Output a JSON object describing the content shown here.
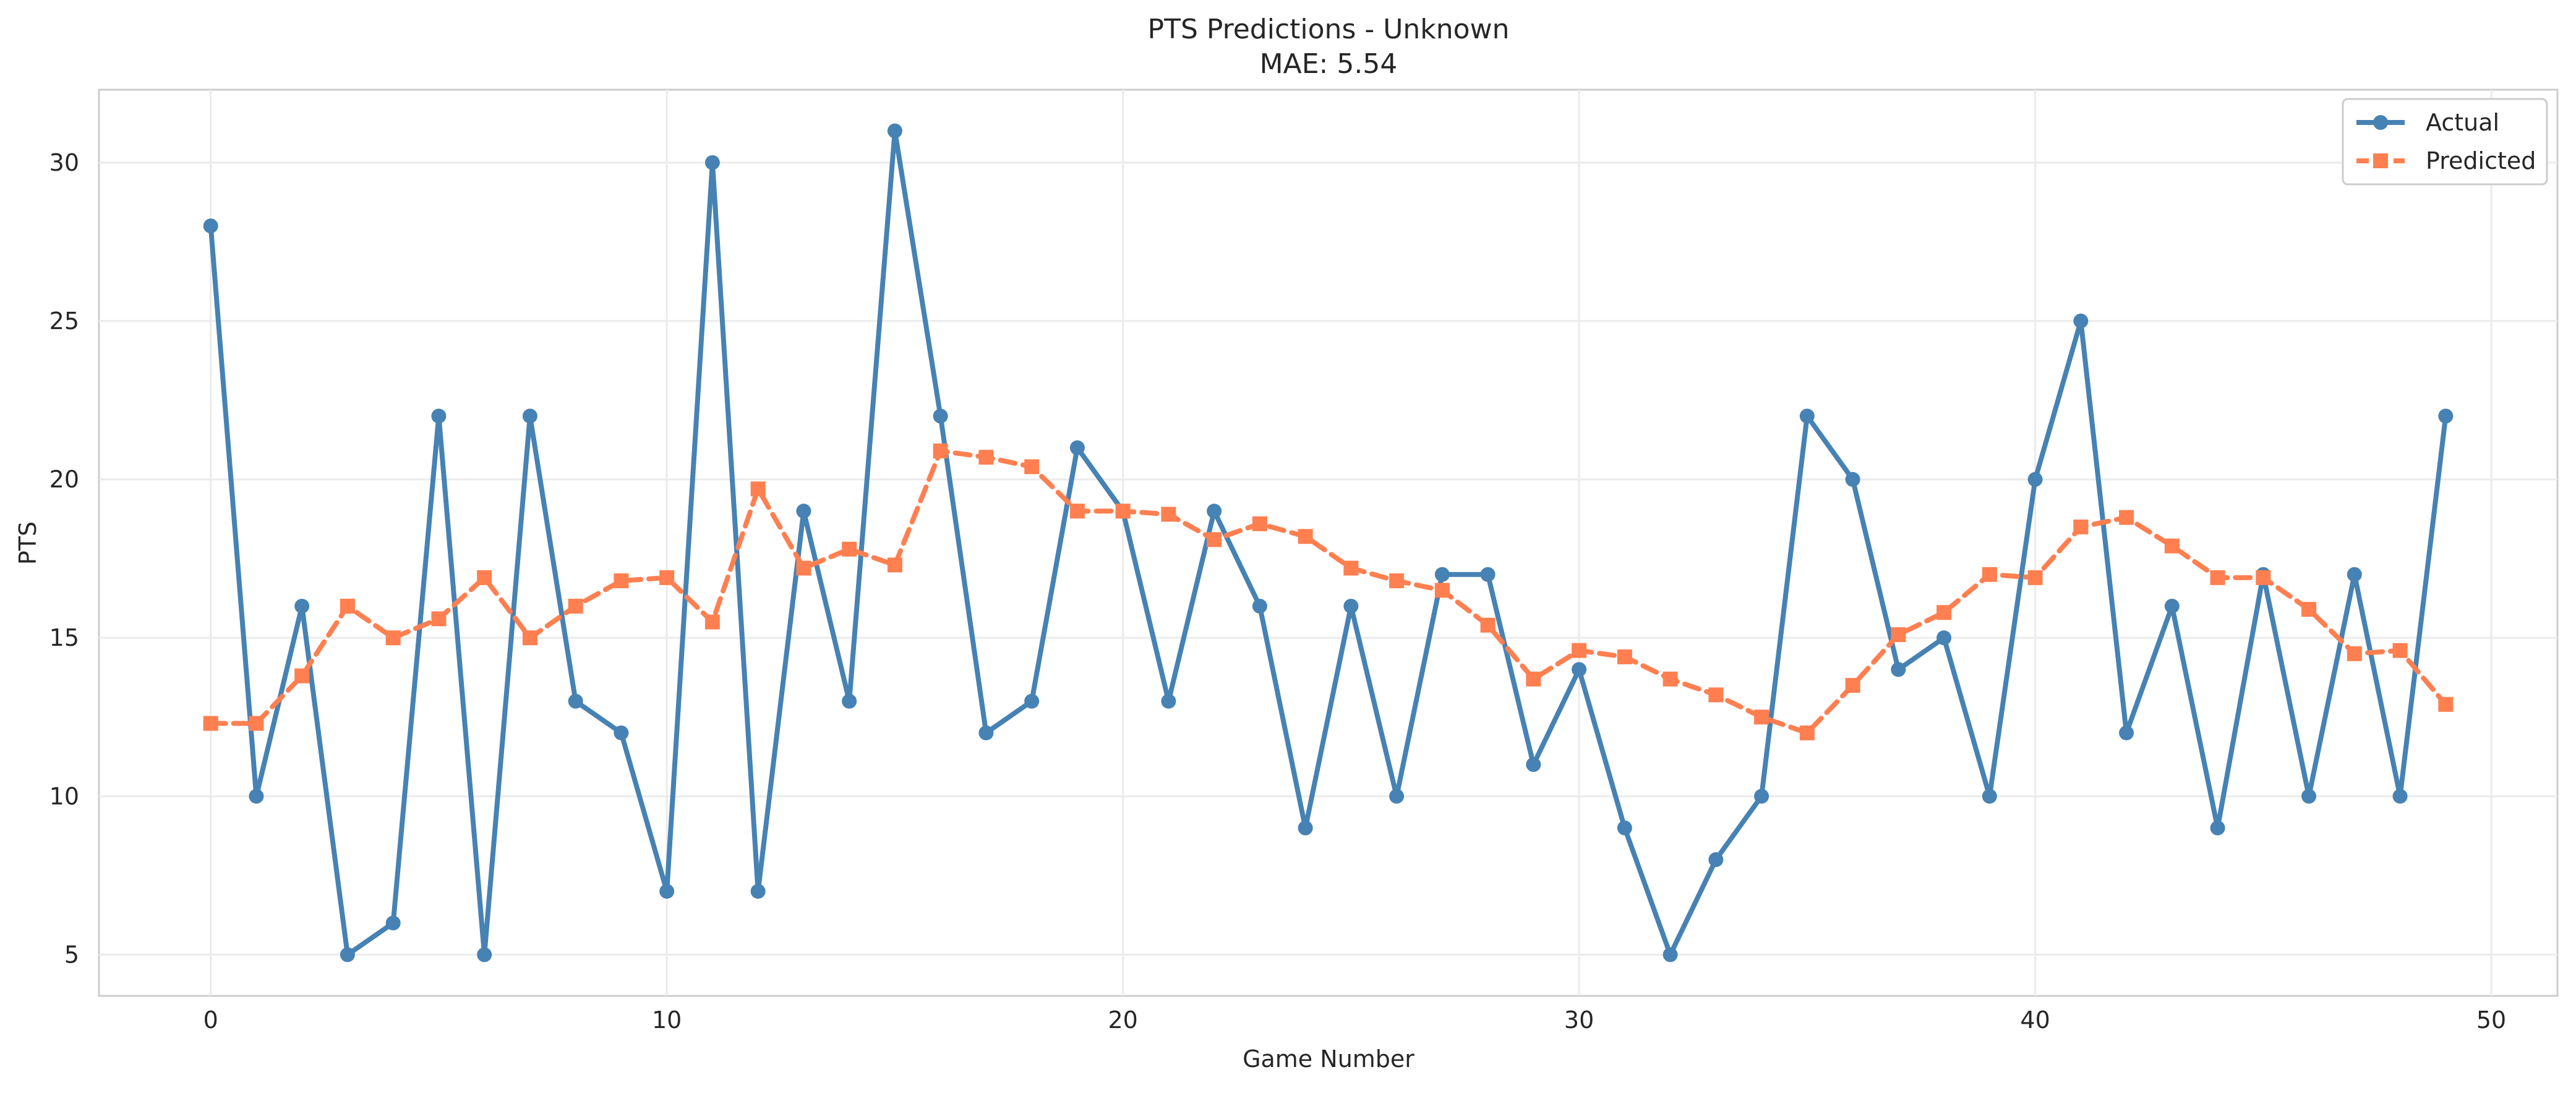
{
  "chart_data": {
    "type": "line",
    "title": "PTS Predictions - Unknown",
    "subtitle": "MAE: 5.54",
    "xlabel": "Game Number",
    "ylabel": "PTS",
    "xlim": [
      -2.45,
      51.45
    ],
    "ylim": [
      3.7,
      32.3
    ],
    "xticks": [
      0,
      10,
      20,
      30,
      40,
      50
    ],
    "yticks": [
      5,
      10,
      15,
      20,
      25,
      30
    ],
    "grid": true,
    "legend_position": "top-right",
    "x": [
      0,
      1,
      2,
      3,
      4,
      5,
      6,
      7,
      8,
      9,
      10,
      11,
      12,
      13,
      14,
      15,
      16,
      17,
      18,
      19,
      20,
      21,
      22,
      23,
      24,
      25,
      26,
      27,
      28,
      29,
      30,
      31,
      32,
      33,
      34,
      35,
      36,
      37,
      38,
      39,
      40,
      41,
      42,
      43,
      44,
      45,
      46,
      47,
      48,
      49
    ],
    "series": [
      {
        "name": "Actual",
        "color": "#4682b4",
        "marker": "circle",
        "linestyle": "solid",
        "values": [
          28,
          10,
          16,
          5,
          6,
          22,
          5,
          22,
          13,
          12,
          7,
          30,
          7,
          19,
          13,
          31,
          22,
          12,
          13,
          21,
          19,
          13,
          19,
          16,
          9,
          16,
          10,
          17,
          17,
          11,
          14,
          9,
          5,
          8,
          10,
          22,
          20,
          14,
          15,
          10,
          20,
          25,
          12,
          16,
          9,
          17,
          10,
          17,
          10,
          22
        ]
      },
      {
        "name": "Predicted",
        "color": "#ff7f50",
        "marker": "square",
        "linestyle": "dashed",
        "values": [
          12.3,
          12.3,
          13.8,
          16.0,
          15.0,
          15.6,
          16.9,
          15.0,
          16.0,
          16.8,
          16.9,
          15.5,
          19.7,
          17.2,
          17.8,
          17.3,
          20.9,
          20.7,
          20.4,
          19.0,
          19.0,
          18.9,
          18.1,
          18.6,
          18.2,
          17.2,
          16.8,
          16.5,
          15.4,
          13.7,
          14.6,
          14.4,
          13.7,
          13.2,
          12.5,
          12.0,
          13.5,
          15.1,
          15.8,
          17.0,
          16.9,
          18.5,
          18.8,
          17.9,
          16.9,
          16.9,
          15.9,
          14.5,
          14.6,
          12.9
        ]
      }
    ]
  }
}
